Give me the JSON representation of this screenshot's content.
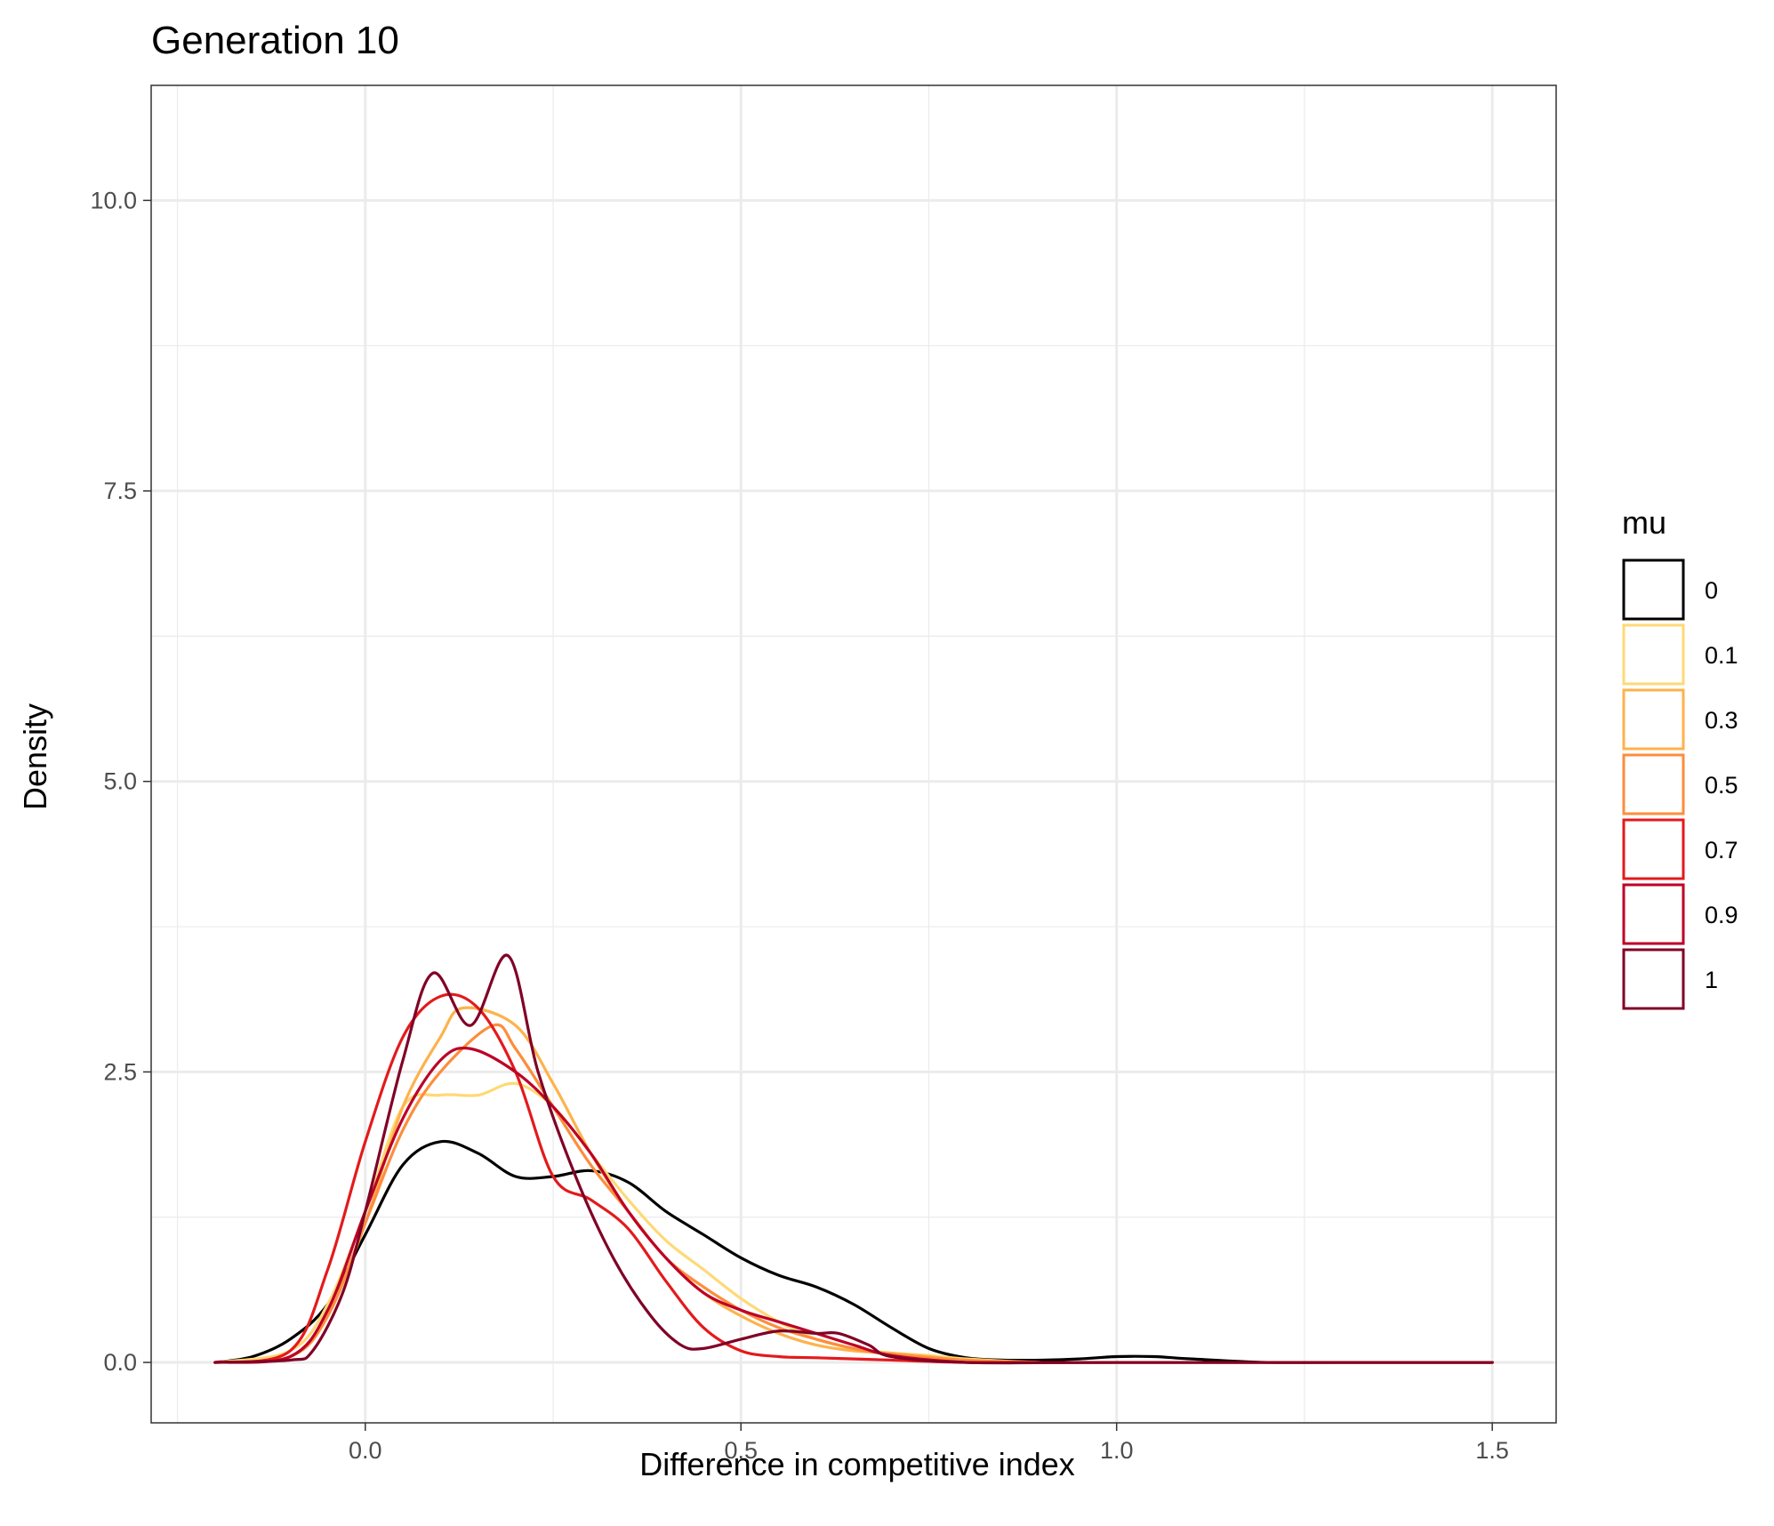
{
  "chart_data": {
    "type": "line",
    "title": "Generation 10",
    "xlabel": "Difference in competitive index",
    "ylabel": "Density",
    "xlim": [
      -0.285,
      1.585
    ],
    "ylim": [
      -0.52,
      10.99
    ],
    "x_ticks": [
      0.0,
      0.5,
      1.0,
      1.5
    ],
    "x_tick_labels": [
      "0.0",
      "0.5",
      "1.0",
      "1.5"
    ],
    "x_minor": [
      -0.25,
      0.25,
      0.75,
      1.25
    ],
    "y_ticks": [
      0.0,
      2.5,
      5.0,
      7.5,
      10.0
    ],
    "y_tick_labels": [
      "0.0",
      "2.5",
      "5.0",
      "7.5",
      "10.0"
    ],
    "y_minor": [
      1.25,
      3.75,
      6.25,
      8.75
    ],
    "grid": true,
    "legend": {
      "title": "mu",
      "position": "right"
    },
    "series": [
      {
        "name": "0",
        "color": "#000000",
        "x": [
          -0.2,
          -0.15,
          -0.1,
          -0.05,
          0.0,
          0.05,
          0.1,
          0.15,
          0.2,
          0.25,
          0.3,
          0.35,
          0.4,
          0.45,
          0.5,
          0.55,
          0.6,
          0.65,
          0.7,
          0.75,
          0.8,
          0.85,
          0.9,
          0.95,
          1.0,
          1.05,
          1.1,
          1.2,
          1.3,
          1.5
        ],
        "y": [
          0.0,
          0.05,
          0.2,
          0.5,
          1.1,
          1.7,
          1.9,
          1.8,
          1.6,
          1.6,
          1.65,
          1.55,
          1.3,
          1.1,
          0.9,
          0.75,
          0.65,
          0.5,
          0.3,
          0.12,
          0.04,
          0.02,
          0.02,
          0.03,
          0.05,
          0.05,
          0.03,
          0.0,
          0.0,
          0.0
        ]
      },
      {
        "name": "0.1",
        "color": "#FED976",
        "x": [
          -0.2,
          -0.1,
          -0.05,
          0.0,
          0.05,
          0.1,
          0.15,
          0.2,
          0.25,
          0.3,
          0.35,
          0.4,
          0.45,
          0.5,
          0.55,
          0.6,
          0.65,
          0.7,
          0.75,
          0.8,
          0.9,
          1.0,
          1.5
        ],
        "y": [
          0.0,
          0.1,
          0.5,
          1.3,
          2.2,
          2.3,
          2.3,
          2.4,
          2.2,
          1.8,
          1.4,
          1.05,
          0.8,
          0.55,
          0.35,
          0.2,
          0.12,
          0.08,
          0.06,
          0.03,
          0.0,
          0.0,
          0.0
        ]
      },
      {
        "name": "0.3",
        "color": "#FEB24C",
        "x": [
          -0.2,
          -0.1,
          -0.05,
          0.0,
          0.05,
          0.1,
          0.13,
          0.2,
          0.25,
          0.3,
          0.35,
          0.4,
          0.45,
          0.5,
          0.55,
          0.6,
          0.65,
          0.7,
          0.75,
          0.8,
          0.9,
          1.0,
          1.5
        ],
        "y": [
          0.0,
          0.05,
          0.4,
          1.2,
          2.2,
          2.8,
          3.05,
          2.9,
          2.4,
          1.8,
          1.3,
          0.9,
          0.6,
          0.4,
          0.25,
          0.15,
          0.1,
          0.08,
          0.05,
          0.02,
          0.0,
          0.0,
          0.0
        ]
      },
      {
        "name": "0.5",
        "color": "#FD8D3C",
        "x": [
          -0.2,
          -0.1,
          -0.05,
          0.0,
          0.05,
          0.1,
          0.17,
          0.2,
          0.25,
          0.3,
          0.35,
          0.4,
          0.45,
          0.5,
          0.55,
          0.6,
          0.65,
          0.7,
          0.8,
          0.9,
          1.0,
          1.5
        ],
        "y": [
          0.0,
          0.05,
          0.4,
          1.2,
          2.0,
          2.5,
          2.9,
          2.7,
          2.2,
          1.7,
          1.3,
          0.9,
          0.65,
          0.45,
          0.3,
          0.2,
          0.12,
          0.07,
          0.02,
          0.0,
          0.0,
          0.0
        ]
      },
      {
        "name": "0.7",
        "color": "#E31A1C",
        "x": [
          -0.2,
          -0.1,
          -0.05,
          0.0,
          0.05,
          0.1,
          0.15,
          0.2,
          0.25,
          0.3,
          0.35,
          0.4,
          0.45,
          0.5,
          0.55,
          0.6,
          0.65,
          0.7,
          0.8,
          0.9,
          1.0,
          1.5
        ],
        "y": [
          0.0,
          0.1,
          0.8,
          1.9,
          2.8,
          3.15,
          3.05,
          2.5,
          1.6,
          1.4,
          1.15,
          0.7,
          0.3,
          0.1,
          0.05,
          0.04,
          0.03,
          0.02,
          0.0,
          0.0,
          0.0,
          0.0
        ]
      },
      {
        "name": "0.9",
        "color": "#BD0026",
        "x": [
          -0.2,
          -0.1,
          -0.05,
          0.0,
          0.05,
          0.1,
          0.14,
          0.2,
          0.25,
          0.3,
          0.35,
          0.4,
          0.45,
          0.5,
          0.55,
          0.6,
          0.65,
          0.7,
          0.8,
          0.9,
          1.0,
          1.5
        ],
        "y": [
          0.0,
          0.05,
          0.45,
          1.3,
          2.1,
          2.6,
          2.7,
          2.5,
          2.2,
          1.8,
          1.3,
          0.9,
          0.6,
          0.45,
          0.35,
          0.25,
          0.15,
          0.06,
          0.0,
          0.0,
          0.0,
          0.0
        ]
      },
      {
        "name": "1",
        "color": "#800026",
        "x": [
          -0.2,
          -0.1,
          -0.07,
          -0.03,
          0.0,
          0.05,
          0.09,
          0.14,
          0.19,
          0.23,
          0.28,
          0.33,
          0.38,
          0.42,
          0.45,
          0.5,
          0.55,
          0.6,
          0.63,
          0.67,
          0.7,
          0.8,
          1.0,
          1.5
        ],
        "y": [
          0.0,
          0.02,
          0.1,
          0.6,
          1.3,
          2.6,
          3.35,
          2.9,
          3.5,
          2.5,
          1.6,
          0.9,
          0.4,
          0.15,
          0.12,
          0.2,
          0.27,
          0.25,
          0.25,
          0.15,
          0.05,
          0.0,
          0.0,
          0.0
        ]
      }
    ]
  }
}
